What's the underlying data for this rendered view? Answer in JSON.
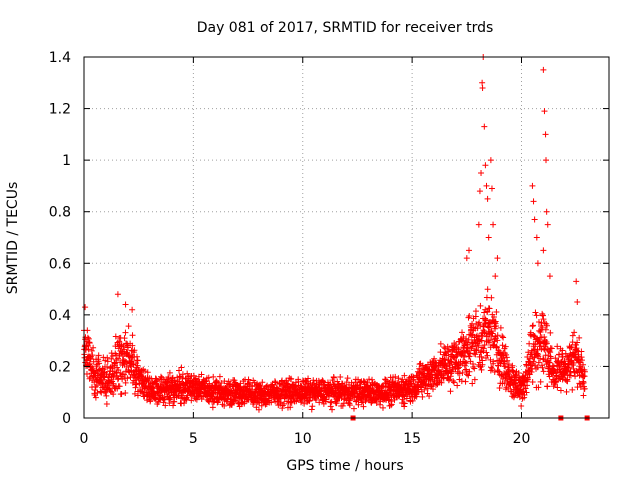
{
  "chart_data": {
    "type": "scatter",
    "title": "Day 081 of 2017, SRMTID for receiver trds",
    "xlabel": "GPS time / hours",
    "ylabel": "SRMTID / TECUs",
    "xlim": [
      0,
      24
    ],
    "ylim": [
      0,
      1.4
    ],
    "grid": true,
    "marker": "+",
    "series_color": "#ff0000",
    "x_ticks": [
      {
        "value": 0,
        "label": "0"
      },
      {
        "value": 5,
        "label": "5"
      },
      {
        "value": 10,
        "label": "10"
      },
      {
        "value": 15,
        "label": "15"
      },
      {
        "value": 20,
        "label": "20"
      }
    ],
    "y_ticks": [
      {
        "value": 0,
        "label": "0"
      },
      {
        "value": 0.2,
        "label": "0.2"
      },
      {
        "value": 0.4,
        "label": "0.4"
      },
      {
        "value": 0.6,
        "label": "0.6"
      },
      {
        "value": 0.8,
        "label": "0.8"
      },
      {
        "value": 1.0,
        "label": "1"
      },
      {
        "value": 1.2,
        "label": "1.2"
      },
      {
        "value": 1.4,
        "label": "1.4"
      }
    ],
    "baseline_y": 0.13,
    "profile": [
      {
        "x": 0.0,
        "center": 0.28,
        "spread": 0.12
      },
      {
        "x": 0.5,
        "center": 0.17,
        "spread": 0.09
      },
      {
        "x": 1.0,
        "center": 0.15,
        "spread": 0.08
      },
      {
        "x": 1.5,
        "center": 0.2,
        "spread": 0.12
      },
      {
        "x": 2.0,
        "center": 0.24,
        "spread": 0.12
      },
      {
        "x": 2.5,
        "center": 0.16,
        "spread": 0.08
      },
      {
        "x": 3.0,
        "center": 0.11,
        "spread": 0.06
      },
      {
        "x": 4.0,
        "center": 0.11,
        "spread": 0.06
      },
      {
        "x": 5.0,
        "center": 0.12,
        "spread": 0.06
      },
      {
        "x": 6.0,
        "center": 0.1,
        "spread": 0.05
      },
      {
        "x": 7.0,
        "center": 0.1,
        "spread": 0.05
      },
      {
        "x": 8.0,
        "center": 0.09,
        "spread": 0.05
      },
      {
        "x": 9.0,
        "center": 0.1,
        "spread": 0.05
      },
      {
        "x": 10.0,
        "center": 0.1,
        "spread": 0.05
      },
      {
        "x": 11.0,
        "center": 0.1,
        "spread": 0.05
      },
      {
        "x": 12.0,
        "center": 0.1,
        "spread": 0.05
      },
      {
        "x": 13.0,
        "center": 0.1,
        "spread": 0.05
      },
      {
        "x": 14.0,
        "center": 0.1,
        "spread": 0.05
      },
      {
        "x": 15.0,
        "center": 0.12,
        "spread": 0.06
      },
      {
        "x": 16.0,
        "center": 0.18,
        "spread": 0.08
      },
      {
        "x": 17.0,
        "center": 0.22,
        "spread": 0.1
      },
      {
        "x": 17.5,
        "center": 0.27,
        "spread": 0.12
      },
      {
        "x": 18.0,
        "center": 0.3,
        "spread": 0.14
      },
      {
        "x": 18.5,
        "center": 0.34,
        "spread": 0.16
      },
      {
        "x": 19.0,
        "center": 0.25,
        "spread": 0.12
      },
      {
        "x": 19.5,
        "center": 0.15,
        "spread": 0.08
      },
      {
        "x": 20.0,
        "center": 0.11,
        "spread": 0.06
      },
      {
        "x": 20.5,
        "center": 0.26,
        "spread": 0.14
      },
      {
        "x": 21.0,
        "center": 0.3,
        "spread": 0.15
      },
      {
        "x": 21.5,
        "center": 0.17,
        "spread": 0.08
      },
      {
        "x": 22.0,
        "center": 0.2,
        "spread": 0.1
      },
      {
        "x": 22.5,
        "center": 0.23,
        "spread": 0.1
      },
      {
        "x": 22.9,
        "center": 0.18,
        "spread": 0.08
      }
    ],
    "x_data_end": 22.9,
    "outliers": [
      {
        "x": 0.05,
        "y": 0.43
      },
      {
        "x": 1.55,
        "y": 0.48
      },
      {
        "x": 1.9,
        "y": 0.44
      },
      {
        "x": 2.2,
        "y": 0.42
      },
      {
        "x": 17.5,
        "y": 0.62
      },
      {
        "x": 17.6,
        "y": 0.65
      },
      {
        "x": 18.05,
        "y": 0.75
      },
      {
        "x": 18.1,
        "y": 0.88
      },
      {
        "x": 18.15,
        "y": 0.95
      },
      {
        "x": 18.2,
        "y": 1.3
      },
      {
        "x": 18.22,
        "y": 1.28
      },
      {
        "x": 18.25,
        "y": 1.4
      },
      {
        "x": 18.3,
        "y": 1.13
      },
      {
        "x": 18.35,
        "y": 0.98
      },
      {
        "x": 18.4,
        "y": 0.9
      },
      {
        "x": 18.45,
        "y": 0.85
      },
      {
        "x": 18.5,
        "y": 0.7
      },
      {
        "x": 18.6,
        "y": 1.0
      },
      {
        "x": 18.65,
        "y": 0.89
      },
      {
        "x": 18.7,
        "y": 0.75
      },
      {
        "x": 18.8,
        "y": 0.55
      },
      {
        "x": 18.9,
        "y": 0.62
      },
      {
        "x": 20.5,
        "y": 0.9
      },
      {
        "x": 20.55,
        "y": 0.84
      },
      {
        "x": 20.6,
        "y": 0.77
      },
      {
        "x": 20.7,
        "y": 0.7
      },
      {
        "x": 20.75,
        "y": 0.6
      },
      {
        "x": 21.0,
        "y": 1.35
      },
      {
        "x": 21.05,
        "y": 1.19
      },
      {
        "x": 21.1,
        "y": 1.1
      },
      {
        "x": 21.12,
        "y": 1.0
      },
      {
        "x": 21.15,
        "y": 0.8
      },
      {
        "x": 21.2,
        "y": 0.75
      },
      {
        "x": 21.0,
        "y": 0.65
      },
      {
        "x": 21.3,
        "y": 0.55
      },
      {
        "x": 22.5,
        "y": 0.53
      },
      {
        "x": 22.55,
        "y": 0.45
      }
    ],
    "zero_markers": [
      {
        "x": 12.3,
        "y": 0.0
      },
      {
        "x": 21.8,
        "y": 0.0
      },
      {
        "x": 23.0,
        "y": 0.0
      }
    ]
  }
}
